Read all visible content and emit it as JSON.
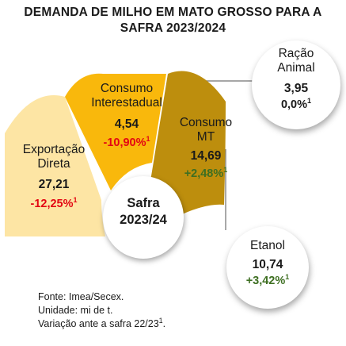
{
  "title_line1": "DEMANDA DE MILHO EM MATO GROSSO PARA A",
  "title_line2": "SAFRA 2023/2024",
  "center": {
    "line1": "Safra",
    "line2": "2023/24"
  },
  "colors": {
    "exportacao": "#fde5a4",
    "interestadual": "#f9b80c",
    "consumo_mt": "#bd8e0d",
    "negative": "#e30613",
    "positive": "#3e6f22",
    "connector": "#8a8a8a"
  },
  "chart_data": {
    "type": "pie",
    "unit": "mi de t",
    "categories": [
      {
        "label_lines": [
          "Exportação",
          "Direta"
        ],
        "value": "27,21",
        "change": "-12,25%",
        "note": "1",
        "sign": "neg"
      },
      {
        "label_lines": [
          "Consumo",
          "Interestadual"
        ],
        "value": "4,54",
        "change": "-10,90%",
        "note": "1",
        "sign": "neg"
      },
      {
        "label_lines": [
          "Consumo",
          "MT"
        ],
        "value": "14,69",
        "change": "+2,48%",
        "note": "1",
        "sign": "pos"
      }
    ],
    "sub_items": [
      {
        "label_lines": [
          "Ração",
          "Animal"
        ],
        "value": "3,95",
        "change": "0,0%",
        "note": "1",
        "sign": "neu"
      },
      {
        "label_lines": [
          "Etanol"
        ],
        "value": "10,74",
        "change": "+3,42%",
        "note": "1",
        "sign": "pos"
      }
    ]
  },
  "footer": {
    "line1": "Fonte: Imea/Secex.",
    "line2": "Unidade: mi de t.",
    "line3": "Variação ante a safra 22/23",
    "line3_note": "1",
    "line3_end": "."
  }
}
